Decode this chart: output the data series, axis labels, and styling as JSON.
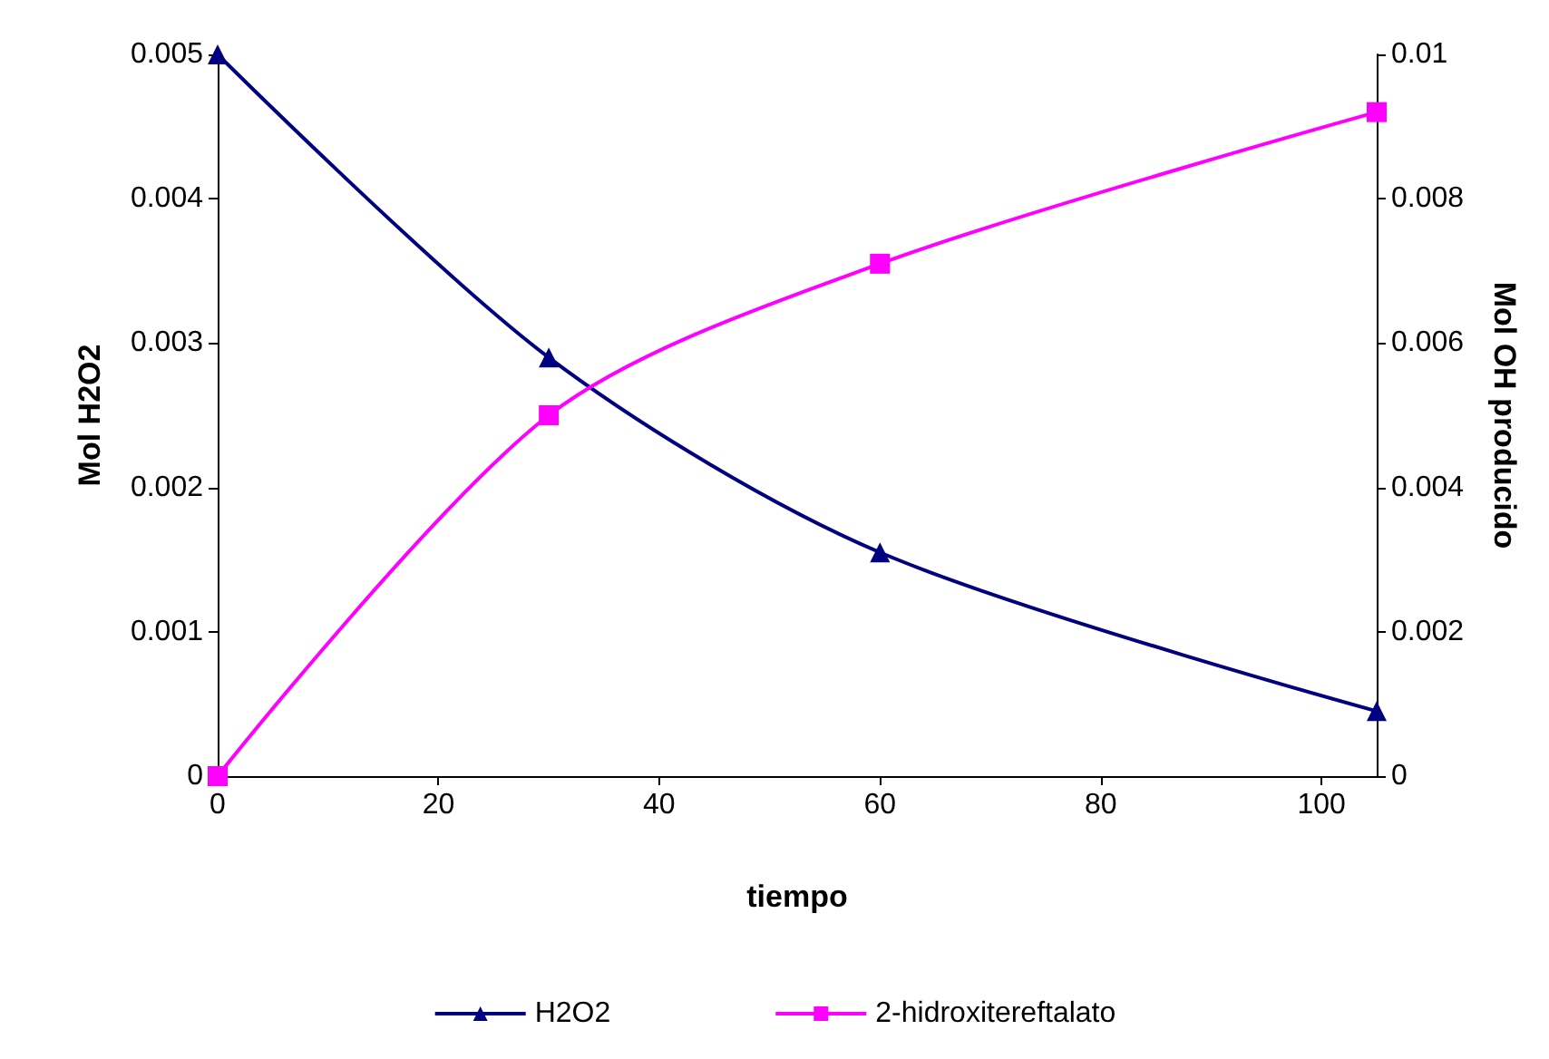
{
  "chart_data": {
    "type": "line",
    "xlabel": "tiempo",
    "ylabel": "Mol H2O2",
    "y2label": "Mol OH producido",
    "xlim": [
      0,
      105
    ],
    "xticks": [
      0,
      20,
      40,
      60,
      80,
      100
    ],
    "ylim": [
      0,
      0.005
    ],
    "yticks": [
      0,
      0.001,
      0.002,
      0.003,
      0.004,
      0.005
    ],
    "y2lim": [
      0,
      0.01
    ],
    "y2ticks": [
      0,
      0.002,
      0.004,
      0.006,
      0.008,
      0.01
    ],
    "grid": false,
    "legend": "bottom",
    "series": [
      {
        "name": "H2O2",
        "color": "#000080",
        "marker": "triangle",
        "x": [
          0,
          30,
          60,
          105
        ],
        "values": [
          0.005,
          0.0029,
          0.00155,
          0.00045
        ]
      },
      {
        "name": "2-hidroxitereftalato",
        "color": "#ff00ff",
        "marker": "square",
        "axis": "y2",
        "x": [
          0,
          30,
          60,
          105
        ],
        "values": [
          0,
          0.005,
          0.0071,
          0.0092
        ]
      }
    ]
  }
}
